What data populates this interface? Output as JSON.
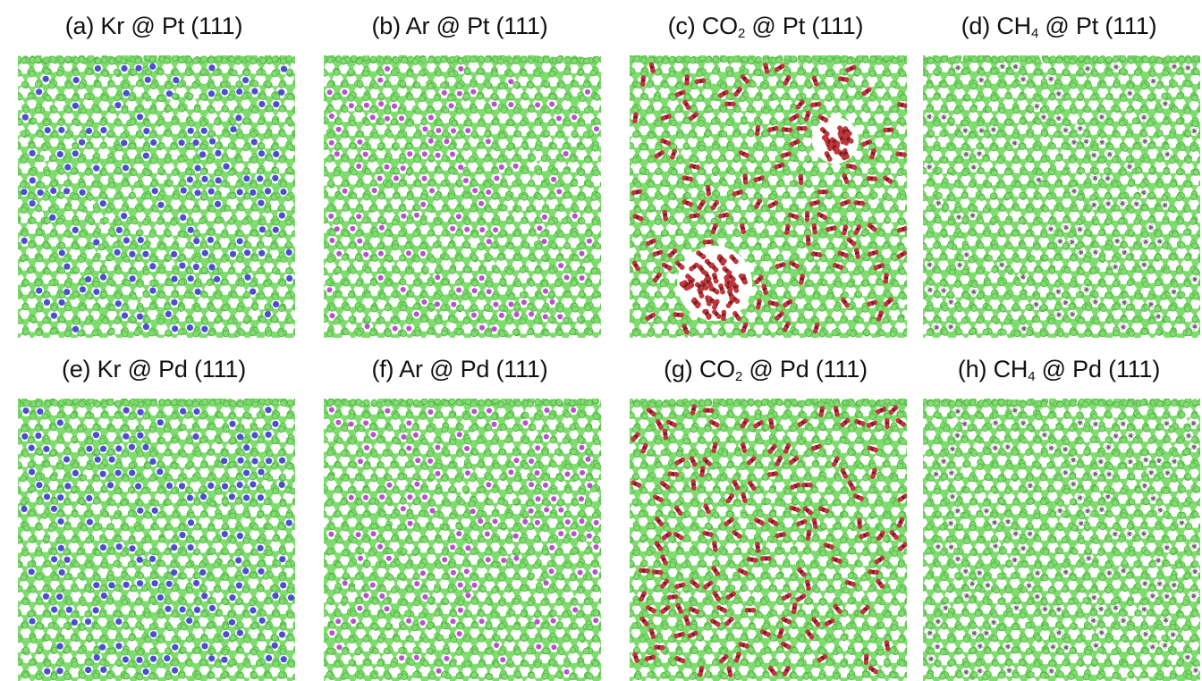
{
  "colors": {
    "substrate": "#7fdc6e",
    "substrate_edge": "#56b346",
    "hole": "#ffffff",
    "Kr": "#4a4fd0",
    "Ar": "#b553c9",
    "CO2_O": "#c0363b",
    "CO2_C": "#7a1f23",
    "CH4": "#6b6b6b",
    "CH4_H": "#d6d6d6"
  },
  "panels": [
    {
      "prefix": "(a) Kr",
      "mid": "",
      "suffix": " @ Pt (111)",
      "sub": "",
      "adsorbate": "Kr",
      "pattern": "dispersed",
      "density": 0.55
    },
    {
      "prefix": "(b) Ar",
      "mid": "",
      "suffix": " @ Pt (111)",
      "sub": "",
      "adsorbate": "Ar",
      "pattern": "dispersed",
      "density": 0.5
    },
    {
      "prefix": "(c) CO",
      "mid": "2",
      "suffix": " @ Pt (111)",
      "sub": "2",
      "adsorbate": "CO2",
      "pattern": "clustered",
      "density": 0.5
    },
    {
      "prefix": "(d) CH",
      "mid": "4",
      "suffix": " @ Pt (111)",
      "sub": "4",
      "adsorbate": "CH4",
      "pattern": "dispersed",
      "density": 0.42
    },
    {
      "prefix": "(e) Kr",
      "mid": "",
      "suffix": " @ Pd (111)",
      "sub": "",
      "adsorbate": "Kr",
      "pattern": "dispersed",
      "density": 0.55
    },
    {
      "prefix": "(f) Ar",
      "mid": "",
      "suffix": " @ Pd (111)",
      "sub": "",
      "adsorbate": "Ar",
      "pattern": "dispersed",
      "density": 0.5
    },
    {
      "prefix": "(g) CO",
      "mid": "2",
      "suffix": " @ Pd (111)",
      "sub": "2",
      "adsorbate": "CO2",
      "pattern": "dispersed",
      "density": 0.55
    },
    {
      "prefix": "(h) CH",
      "mid": "4",
      "suffix": " @ Pd (111)",
      "sub": "4",
      "adsorbate": "CH4",
      "pattern": "dispersed",
      "density": 0.42
    }
  ]
}
